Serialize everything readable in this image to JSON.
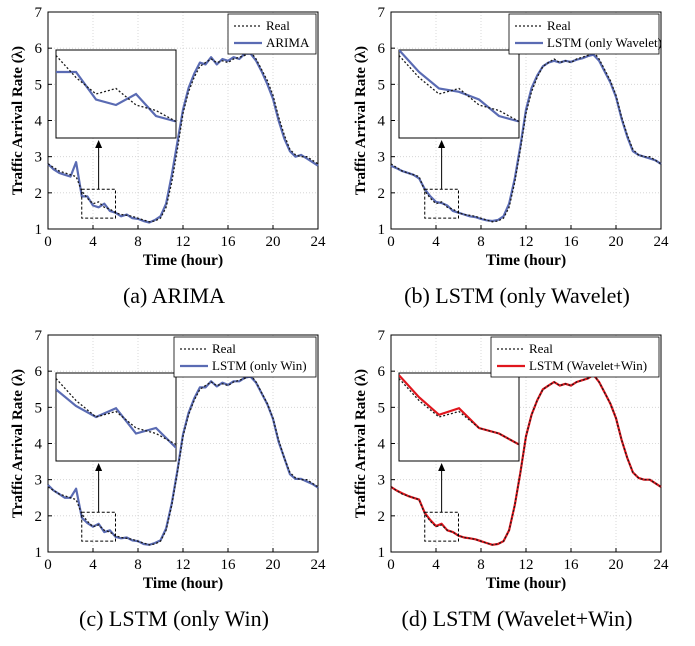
{
  "figure": {
    "colors": {
      "real": "#1a1a1a",
      "blue": "#5a6bb3",
      "red": "#e0161d",
      "box": "#000000"
    }
  },
  "chart_data": [
    {
      "type": "line",
      "caption": "(a)  ARIMA",
      "xlabel": "Time (hour)",
      "ylabel": "Traffic Arrival Rate (λ)",
      "xlim": [
        0,
        24
      ],
      "ylim": [
        1,
        7
      ],
      "xticks": [
        0,
        4,
        8,
        12,
        16,
        20,
        24
      ],
      "yticks": [
        1,
        2,
        3,
        4,
        5,
        6,
        7
      ],
      "grid": true,
      "legend": "top-right",
      "inset": "zoom of 3–6 h (dashed box), arrow to enlarged view",
      "series": [
        {
          "name": "Real",
          "style": "dotted",
          "color": "#1a1a1a",
          "x": [
            0,
            0.5,
            1,
            1.5,
            2,
            2.5,
            3,
            3.5,
            4,
            4.5,
            5,
            5.5,
            6,
            6.5,
            7,
            7.5,
            8,
            8.5,
            9,
            9.5,
            10,
            10.5,
            11,
            11.5,
            12,
            12.5,
            13,
            13.5,
            14,
            14.5,
            15,
            15.5,
            16,
            16.5,
            17,
            17.5,
            18,
            18.5,
            19,
            19.5,
            20,
            20.5,
            21,
            21.5,
            22,
            22.5,
            23,
            23.5,
            24
          ],
          "y": [
            2.8,
            2.7,
            2.6,
            2.55,
            2.5,
            2.45,
            2.05,
            1.85,
            1.7,
            1.75,
            1.6,
            1.55,
            1.45,
            1.4,
            1.38,
            1.35,
            1.3,
            1.25,
            1.2,
            1.22,
            1.3,
            1.6,
            2.3,
            3.2,
            4.2,
            4.8,
            5.2,
            5.5,
            5.6,
            5.7,
            5.6,
            5.65,
            5.6,
            5.7,
            5.75,
            5.8,
            5.9,
            5.7,
            5.4,
            5.1,
            4.7,
            4.1,
            3.6,
            3.2,
            3.05,
            3.0,
            3.0,
            2.9,
            2.8
          ]
        },
        {
          "name": "ARIMA",
          "style": "solid",
          "color": "#5a6bb3",
          "x": [
            0,
            0.5,
            1,
            1.5,
            2,
            2.5,
            3,
            3.5,
            4,
            4.5,
            5,
            5.5,
            6,
            6.5,
            7,
            7.5,
            8,
            8.5,
            9,
            9.5,
            10,
            10.5,
            11,
            11.5,
            12,
            12.5,
            13,
            13.5,
            14,
            14.5,
            15,
            15.5,
            16,
            16.5,
            17,
            17.5,
            18,
            18.5,
            19,
            19.5,
            20,
            20.5,
            21,
            21.5,
            22,
            22.5,
            23,
            23.5,
            24
          ],
          "y": [
            2.8,
            2.65,
            2.55,
            2.5,
            2.45,
            2.85,
            1.9,
            1.9,
            1.65,
            1.6,
            1.7,
            1.5,
            1.45,
            1.35,
            1.4,
            1.3,
            1.28,
            1.22,
            1.18,
            1.25,
            1.35,
            1.7,
            2.5,
            3.4,
            4.3,
            4.9,
            5.3,
            5.6,
            5.55,
            5.75,
            5.55,
            5.7,
            5.65,
            5.75,
            5.7,
            5.85,
            5.85,
            5.65,
            5.35,
            5.0,
            4.6,
            4.0,
            3.5,
            3.15,
            3.0,
            3.05,
            2.95,
            2.85,
            2.75
          ]
        }
      ]
    },
    {
      "type": "line",
      "caption": "(b)  LSTM  (only  Wavelet)",
      "xlabel": "Time (hour)",
      "ylabel": "Traffic Arrival Rate (λ)",
      "xlim": [
        0,
        24
      ],
      "ylim": [
        1,
        7
      ],
      "xticks": [
        0,
        4,
        8,
        12,
        16,
        20,
        24
      ],
      "yticks": [
        1,
        2,
        3,
        4,
        5,
        6,
        7
      ],
      "grid": true,
      "legend": "top-right",
      "inset": "zoom of 3–6 h (dashed box), arrow to enlarged view",
      "series": [
        {
          "name": "Real",
          "style": "dotted",
          "color": "#1a1a1a",
          "x": [
            0,
            0.5,
            1,
            1.5,
            2,
            2.5,
            3,
            3.5,
            4,
            4.5,
            5,
            5.5,
            6,
            6.5,
            7,
            7.5,
            8,
            8.5,
            9,
            9.5,
            10,
            10.5,
            11,
            11.5,
            12,
            12.5,
            13,
            13.5,
            14,
            14.5,
            15,
            15.5,
            16,
            16.5,
            17,
            17.5,
            18,
            18.5,
            19,
            19.5,
            20,
            20.5,
            21,
            21.5,
            22,
            22.5,
            23,
            23.5,
            24
          ],
          "y": [
            2.8,
            2.7,
            2.6,
            2.55,
            2.5,
            2.45,
            2.05,
            1.85,
            1.7,
            1.75,
            1.6,
            1.55,
            1.45,
            1.4,
            1.38,
            1.35,
            1.3,
            1.25,
            1.2,
            1.22,
            1.3,
            1.6,
            2.3,
            3.2,
            4.2,
            4.8,
            5.2,
            5.5,
            5.6,
            5.7,
            5.6,
            5.65,
            5.6,
            5.7,
            5.75,
            5.8,
            5.9,
            5.7,
            5.4,
            5.1,
            4.7,
            4.1,
            3.6,
            3.2,
            3.05,
            3.0,
            3.0,
            2.9,
            2.8
          ]
        },
        {
          "name": "LSTM (only Wavelet)",
          "style": "solid",
          "color": "#5a6bb3",
          "x": [
            0,
            0.5,
            1,
            1.5,
            2,
            2.5,
            3,
            3.5,
            4,
            4.5,
            5,
            5.5,
            6,
            6.5,
            7,
            7.5,
            8,
            8.5,
            9,
            9.5,
            10,
            10.5,
            11,
            11.5,
            12,
            12.5,
            13,
            13.5,
            14,
            14.5,
            15,
            15.5,
            16,
            16.5,
            17,
            17.5,
            18,
            18.5,
            19,
            19.5,
            20,
            20.5,
            21,
            21.5,
            22,
            22.5,
            23,
            23.5,
            24
          ],
          "y": [
            2.75,
            2.68,
            2.6,
            2.55,
            2.5,
            2.4,
            2.1,
            1.9,
            1.75,
            1.72,
            1.65,
            1.5,
            1.45,
            1.4,
            1.35,
            1.33,
            1.28,
            1.24,
            1.22,
            1.25,
            1.35,
            1.7,
            2.4,
            3.3,
            4.3,
            4.9,
            5.25,
            5.5,
            5.6,
            5.65,
            5.6,
            5.65,
            5.62,
            5.68,
            5.72,
            5.78,
            5.82,
            5.65,
            5.35,
            5.05,
            4.65,
            4.05,
            3.55,
            3.15,
            3.05,
            3.0,
            2.95,
            2.9,
            2.8
          ]
        }
      ]
    },
    {
      "type": "line",
      "caption": "(c)  LSTM  (only  Win)",
      "xlabel": "Time (hour)",
      "ylabel": "Traffic Arrival Rate (λ)",
      "xlim": [
        0,
        24
      ],
      "ylim": [
        1,
        7
      ],
      "xticks": [
        0,
        4,
        8,
        12,
        16,
        20,
        24
      ],
      "yticks": [
        1,
        2,
        3,
        4,
        5,
        6,
        7
      ],
      "grid": true,
      "legend": "top-right",
      "inset": "zoom of 3–6 h (dashed box), arrow to enlarged view",
      "series": [
        {
          "name": "Real",
          "style": "dotted",
          "color": "#1a1a1a",
          "x": [
            0,
            0.5,
            1,
            1.5,
            2,
            2.5,
            3,
            3.5,
            4,
            4.5,
            5,
            5.5,
            6,
            6.5,
            7,
            7.5,
            8,
            8.5,
            9,
            9.5,
            10,
            10.5,
            11,
            11.5,
            12,
            12.5,
            13,
            13.5,
            14,
            14.5,
            15,
            15.5,
            16,
            16.5,
            17,
            17.5,
            18,
            18.5,
            19,
            19.5,
            20,
            20.5,
            21,
            21.5,
            22,
            22.5,
            23,
            23.5,
            24
          ],
          "y": [
            2.8,
            2.7,
            2.6,
            2.55,
            2.5,
            2.45,
            2.05,
            1.85,
            1.7,
            1.75,
            1.6,
            1.55,
            1.45,
            1.4,
            1.38,
            1.35,
            1.3,
            1.25,
            1.2,
            1.22,
            1.3,
            1.6,
            2.3,
            3.2,
            4.2,
            4.8,
            5.2,
            5.5,
            5.6,
            5.7,
            5.6,
            5.65,
            5.6,
            5.7,
            5.75,
            5.8,
            5.9,
            5.7,
            5.4,
            5.1,
            4.7,
            4.1,
            3.6,
            3.2,
            3.05,
            3.0,
            3.0,
            2.9,
            2.8
          ]
        },
        {
          "name": "LSTM (only Win)",
          "style": "solid",
          "color": "#5a6bb3",
          "x": [
            0,
            0.5,
            1,
            1.5,
            2,
            2.5,
            3,
            3.5,
            4,
            4.5,
            5,
            5.5,
            6,
            6.5,
            7,
            7.5,
            8,
            8.5,
            9,
            9.5,
            10,
            10.5,
            11,
            11.5,
            12,
            12.5,
            13,
            13.5,
            14,
            14.5,
            15,
            15.5,
            16,
            16.5,
            17,
            17.5,
            18,
            18.5,
            19,
            19.5,
            20,
            20.5,
            21,
            21.5,
            22,
            22.5,
            23,
            23.5,
            24
          ],
          "y": [
            2.85,
            2.7,
            2.6,
            2.5,
            2.5,
            2.75,
            1.95,
            1.8,
            1.7,
            1.78,
            1.55,
            1.6,
            1.42,
            1.38,
            1.4,
            1.32,
            1.3,
            1.22,
            1.2,
            1.25,
            1.32,
            1.65,
            2.35,
            3.25,
            4.25,
            4.85,
            5.25,
            5.55,
            5.55,
            5.72,
            5.58,
            5.68,
            5.62,
            5.72,
            5.72,
            5.82,
            5.85,
            5.68,
            5.38,
            5.08,
            4.68,
            4.05,
            3.6,
            3.15,
            3.02,
            3.02,
            2.95,
            2.88,
            2.78
          ]
        }
      ]
    },
    {
      "type": "line",
      "caption": "(d)  LSTM  (Wavelet+Win)",
      "xlabel": "Time (hour)",
      "ylabel": "Traffic Arrival Rate (λ)",
      "xlim": [
        0,
        24
      ],
      "ylim": [
        1,
        7
      ],
      "xticks": [
        0,
        4,
        8,
        12,
        16,
        20,
        24
      ],
      "yticks": [
        1,
        2,
        3,
        4,
        5,
        6,
        7
      ],
      "grid": true,
      "legend": "top-right",
      "inset": "zoom of 3–6 h (dashed box), arrow to enlarged view",
      "series": [
        {
          "name": "Real",
          "style": "dotted",
          "color": "#1a1a1a",
          "x": [
            0,
            0.5,
            1,
            1.5,
            2,
            2.5,
            3,
            3.5,
            4,
            4.5,
            5,
            5.5,
            6,
            6.5,
            7,
            7.5,
            8,
            8.5,
            9,
            9.5,
            10,
            10.5,
            11,
            11.5,
            12,
            12.5,
            13,
            13.5,
            14,
            14.5,
            15,
            15.5,
            16,
            16.5,
            17,
            17.5,
            18,
            18.5,
            19,
            19.5,
            20,
            20.5,
            21,
            21.5,
            22,
            22.5,
            23,
            23.5,
            24
          ],
          "y": [
            2.8,
            2.7,
            2.6,
            2.55,
            2.5,
            2.45,
            2.05,
            1.85,
            1.7,
            1.75,
            1.6,
            1.55,
            1.45,
            1.4,
            1.38,
            1.35,
            1.3,
            1.25,
            1.2,
            1.22,
            1.3,
            1.6,
            2.3,
            3.2,
            4.2,
            4.8,
            5.2,
            5.5,
            5.6,
            5.7,
            5.6,
            5.65,
            5.6,
            5.7,
            5.75,
            5.8,
            5.9,
            5.7,
            5.4,
            5.1,
            4.7,
            4.1,
            3.6,
            3.2,
            3.05,
            3.0,
            3.0,
            2.9,
            2.8
          ]
        },
        {
          "name": "LSTM (Wavelet+Win)",
          "style": "solid",
          "color": "#e0161d",
          "x": [
            0,
            0.5,
            1,
            1.5,
            2,
            2.5,
            3,
            3.5,
            4,
            4.5,
            5,
            5.5,
            6,
            6.5,
            7,
            7.5,
            8,
            8.5,
            9,
            9.5,
            10,
            10.5,
            11,
            11.5,
            12,
            12.5,
            13,
            13.5,
            14,
            14.5,
            15,
            15.5,
            16,
            16.5,
            17,
            17.5,
            18,
            18.5,
            19,
            19.5,
            20,
            20.5,
            21,
            21.5,
            22,
            22.5,
            23,
            23.5,
            24
          ],
          "y": [
            2.8,
            2.7,
            2.62,
            2.55,
            2.5,
            2.45,
            2.08,
            1.88,
            1.72,
            1.78,
            1.6,
            1.55,
            1.45,
            1.4,
            1.38,
            1.35,
            1.3,
            1.25,
            1.2,
            1.22,
            1.3,
            1.6,
            2.3,
            3.2,
            4.2,
            4.8,
            5.2,
            5.5,
            5.6,
            5.7,
            5.6,
            5.65,
            5.6,
            5.7,
            5.75,
            5.8,
            5.9,
            5.7,
            5.4,
            5.1,
            4.7,
            4.1,
            3.6,
            3.2,
            3.05,
            3.0,
            3.0,
            2.9,
            2.8
          ]
        }
      ]
    }
  ]
}
